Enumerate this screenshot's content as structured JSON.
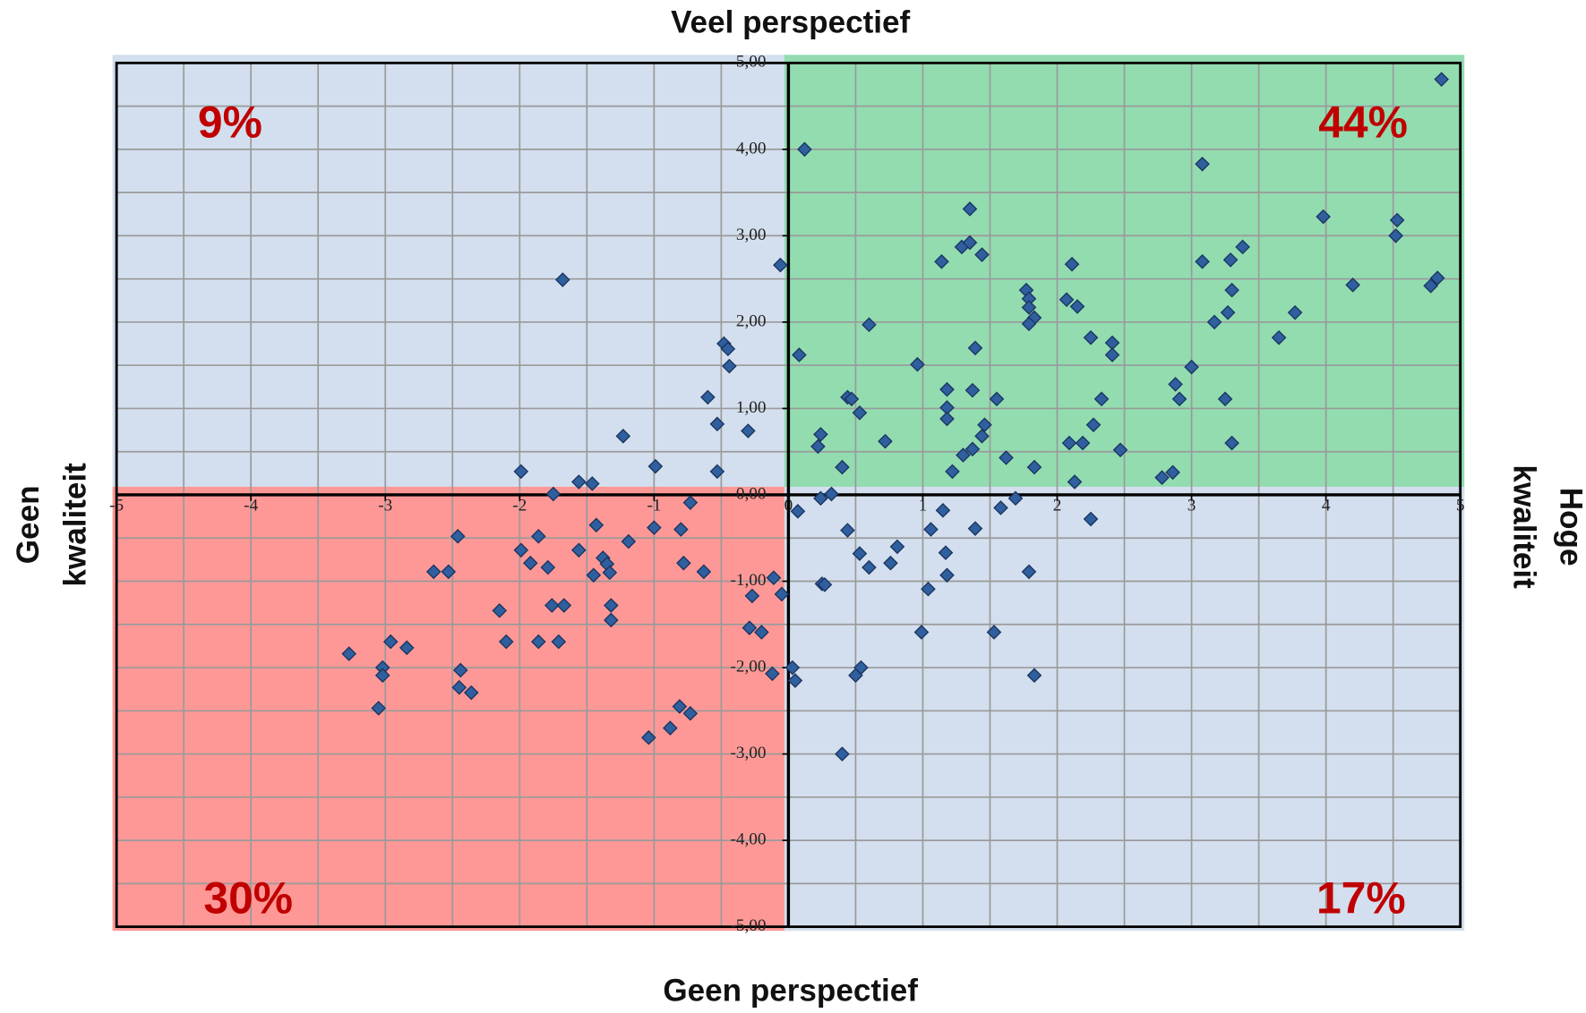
{
  "chart_data": {
    "type": "scatter",
    "top_label": "Veel perspectief",
    "bottom_label": "Geen perspectief",
    "left_label": [
      "Geen",
      "kwaliteit"
    ],
    "right_label": [
      "Hoge",
      "kwaliteit"
    ],
    "quadrants": [
      {
        "label": "9%",
        "color": "#d3dfee"
      },
      {
        "label": "44%",
        "color": "#92dcb0"
      },
      {
        "label": "30%",
        "color": "#fe9896"
      },
      {
        "label": "17%",
        "color": "#d3dfee"
      }
    ],
    "xlim": [
      -5,
      5
    ],
    "ylim": [
      -5,
      5
    ],
    "xticks": [
      -5,
      -4,
      -3,
      -2,
      -1,
      0,
      1,
      2,
      3,
      4,
      5
    ],
    "yticks": [
      {
        "value": 5,
        "label": "5,00"
      },
      {
        "value": 4,
        "label": "4,00"
      },
      {
        "value": 3,
        "label": "3,00"
      },
      {
        "value": 2,
        "label": "2,00"
      },
      {
        "value": 1,
        "label": "1,00"
      },
      {
        "value": 0,
        "label": "0,00"
      },
      {
        "value": -1,
        "label": "-1,00"
      },
      {
        "value": -2,
        "label": "-2,00"
      },
      {
        "value": -3,
        "label": "-3,00"
      },
      {
        "value": -4,
        "label": "-4,00"
      },
      {
        "value": -5,
        "label": "-5,00"
      }
    ],
    "xgrid": [
      -4.5,
      -4,
      -3.5,
      -3,
      -2.5,
      -2,
      -1.5,
      -1,
      -0.5,
      0.5,
      1,
      1.5,
      2,
      2.5,
      3,
      3.5,
      4,
      4.5
    ],
    "ygrid": [
      4.5,
      4,
      3.5,
      3,
      2.5,
      2,
      1.5,
      1,
      0.5,
      -0.5,
      -1,
      -1.5,
      -2,
      -2.5,
      -3,
      -3.5,
      -4,
      -4.5
    ],
    "series": [
      {
        "color": "#2f5f9e",
        "x": [
          4.86,
          0.12,
          3.08,
          1.35,
          3.98,
          4.53,
          4.52,
          1.29,
          1.35,
          1.44,
          3.38,
          1.14,
          2.11,
          3.08,
          3.29,
          -0.06,
          4.83,
          4.78,
          4.2,
          1.77,
          1.79,
          3.3,
          2.07,
          2.15,
          1.79,
          1.83,
          1.79,
          3.77,
          3.27,
          3.17,
          0.6,
          3.65,
          2.25,
          2.41,
          2.41,
          1.39,
          0.08,
          0.96,
          3.0,
          2.88,
          1.18,
          1.37,
          0.44,
          0.47,
          1.55,
          2.33,
          2.91,
          3.25,
          1.18,
          0.53,
          1.18,
          1.46,
          2.27,
          0.24,
          1.44,
          0.72,
          2.09,
          2.19,
          3.3,
          0.22,
          1.37,
          2.47,
          1.3,
          1.62,
          0.4,
          1.22,
          1.83,
          2.86,
          2.78,
          2.13,
          0.32,
          -1.68,
          -0.48,
          -0.45,
          -0.44,
          -0.6,
          -0.53,
          -0.3,
          -1.23,
          -0.99,
          -1.99,
          -0.53,
          -1.56,
          -1.46,
          -1.75,
          0.24,
          1.69,
          0.07,
          1.15,
          1.58,
          2.25,
          0.44,
          1.06,
          1.39,
          0.81,
          0.53,
          1.17,
          0.6,
          0.76,
          1.18,
          1.79,
          -0.11,
          0.25,
          0.27,
          -0.05,
          1.04,
          -0.27,
          1.53,
          0.99,
          0.03,
          0.54,
          0.5,
          0.05,
          1.83,
          0.4,
          -0.12,
          -0.73,
          -1.43,
          -1.0,
          -0.8,
          -2.46,
          -1.86,
          -1.19,
          -1.99,
          -1.56,
          -1.38,
          -1.35,
          -1.92,
          -0.78,
          -1.79,
          -1.33,
          -1.45,
          -2.64,
          -2.53,
          -0.63,
          -2.15,
          -1.76,
          -1.67,
          -1.32,
          -1.32,
          -0.29,
          -0.2,
          -2.96,
          -2.84,
          -2.1,
          -1.86,
          -1.71,
          -3.27,
          -3.02,
          -2.44,
          -3.02,
          -2.45,
          -2.36,
          -3.05,
          -0.81,
          -0.73,
          -0.88,
          -1.04
        ],
        "values": [
          4.81,
          4.0,
          3.83,
          3.31,
          3.22,
          3.18,
          3.0,
          2.87,
          2.92,
          2.78,
          2.87,
          2.7,
          2.67,
          2.7,
          2.72,
          2.66,
          2.51,
          2.42,
          2.43,
          2.37,
          2.27,
          2.37,
          2.26,
          2.18,
          2.17,
          2.05,
          1.98,
          2.11,
          2.11,
          2.0,
          1.97,
          1.82,
          1.82,
          1.76,
          1.62,
          1.7,
          1.62,
          1.51,
          1.48,
          1.28,
          1.22,
          1.21,
          1.13,
          1.11,
          1.11,
          1.11,
          1.11,
          1.11,
          1.01,
          0.95,
          0.88,
          0.81,
          0.81,
          0.7,
          0.68,
          0.62,
          0.6,
          0.6,
          0.6,
          0.56,
          0.53,
          0.52,
          0.46,
          0.43,
          0.32,
          0.27,
          0.32,
          0.26,
          0.2,
          0.15,
          0.01,
          2.49,
          1.75,
          1.69,
          1.49,
          1.13,
          0.82,
          0.74,
          0.68,
          0.33,
          0.27,
          0.27,
          0.15,
          0.13,
          0.01,
          -0.04,
          -0.04,
          -0.19,
          -0.18,
          -0.15,
          -0.28,
          -0.41,
          -0.4,
          -0.39,
          -0.6,
          -0.68,
          -0.67,
          -0.84,
          -0.79,
          -0.93,
          -0.89,
          -0.96,
          -1.03,
          -1.04,
          -1.15,
          -1.09,
          -1.17,
          -1.59,
          -1.59,
          -2.0,
          -2.0,
          -2.09,
          -2.15,
          -2.09,
          -3.0,
          -2.07,
          -0.09,
          -0.35,
          -0.38,
          -0.4,
          -0.48,
          -0.48,
          -0.54,
          -0.64,
          -0.64,
          -0.73,
          -0.8,
          -0.79,
          -0.79,
          -0.84,
          -0.9,
          -0.93,
          -0.89,
          -0.89,
          -0.89,
          -1.34,
          -1.28,
          -1.28,
          -1.28,
          -1.45,
          -1.54,
          -1.59,
          -1.7,
          -1.77,
          -1.7,
          -1.7,
          -1.7,
          -1.84,
          -2.0,
          -2.03,
          -2.09,
          -2.23,
          -2.29,
          -2.47,
          -2.45,
          -2.53,
          -2.7,
          -2.81
        ]
      }
    ]
  }
}
